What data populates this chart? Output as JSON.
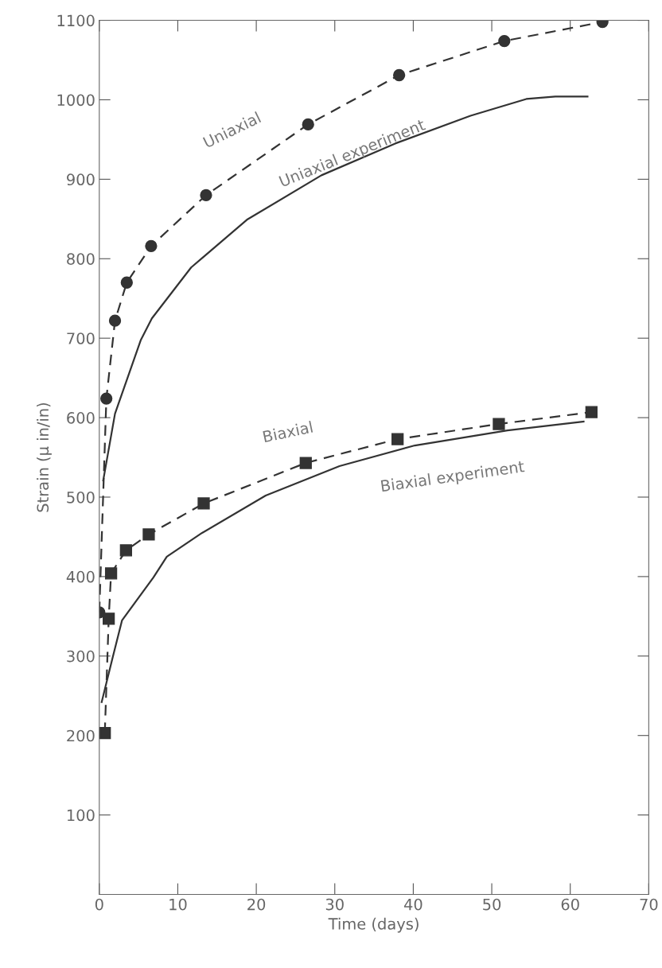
{
  "chart_data": {
    "type": "line",
    "xlabel": "Time (days)",
    "ylabel": "Strain (μ in/in)",
    "xlim": [
      0,
      70
    ],
    "ylim": [
      0,
      1100
    ],
    "xticks": [
      0,
      10,
      20,
      30,
      40,
      50,
      60,
      70
    ],
    "yticks": [
      100,
      200,
      300,
      400,
      500,
      600,
      700,
      800,
      900,
      1000,
      1100
    ],
    "grid": false,
    "legend": false,
    "series": [
      {
        "name": "Uniaxial",
        "color": "#333333",
        "line_style": "dashed",
        "marker": "circle",
        "x": [
          0,
          0.9,
          2.0,
          3.5,
          6.6,
          13.6,
          26.6,
          38.2,
          51.6,
          64.1
        ],
        "values": [
          355,
          624,
          722,
          770,
          816,
          880,
          969,
          1031,
          1074,
          1098
        ]
      },
      {
        "name": "Uniaxial experiment",
        "color": "#333333",
        "line_style": "solid",
        "marker": "none",
        "x": [
          0.5,
          2.0,
          5.3,
          6.7,
          11.7,
          18.8,
          28.3,
          37.7,
          47.3,
          54.4,
          58.1,
          62.2
        ],
        "values": [
          521,
          605,
          698,
          725,
          789,
          849,
          905,
          945,
          980,
          1001,
          1004,
          1004
        ]
      },
      {
        "name": "Biaxial",
        "color": "#333333",
        "line_style": "dashed",
        "marker": "square",
        "x": [
          0.7,
          1.2,
          1.5,
          3.4,
          6.3,
          13.3,
          26.3,
          38.0,
          50.9,
          62.7
        ],
        "values": [
          203,
          347,
          404,
          433,
          453,
          492,
          543,
          573,
          592,
          607
        ]
      },
      {
        "name": "Biaxial experiment",
        "color": "#333333",
        "line_style": "solid",
        "marker": "none",
        "x": [
          0.3,
          1.7,
          2.9,
          6.9,
          8.6,
          13.1,
          21.2,
          30.6,
          40.2,
          52.0,
          61.7
        ],
        "values": [
          242,
          298,
          345,
          399,
          425,
          455,
          502,
          539,
          565,
          584,
          595
        ]
      }
    ]
  }
}
